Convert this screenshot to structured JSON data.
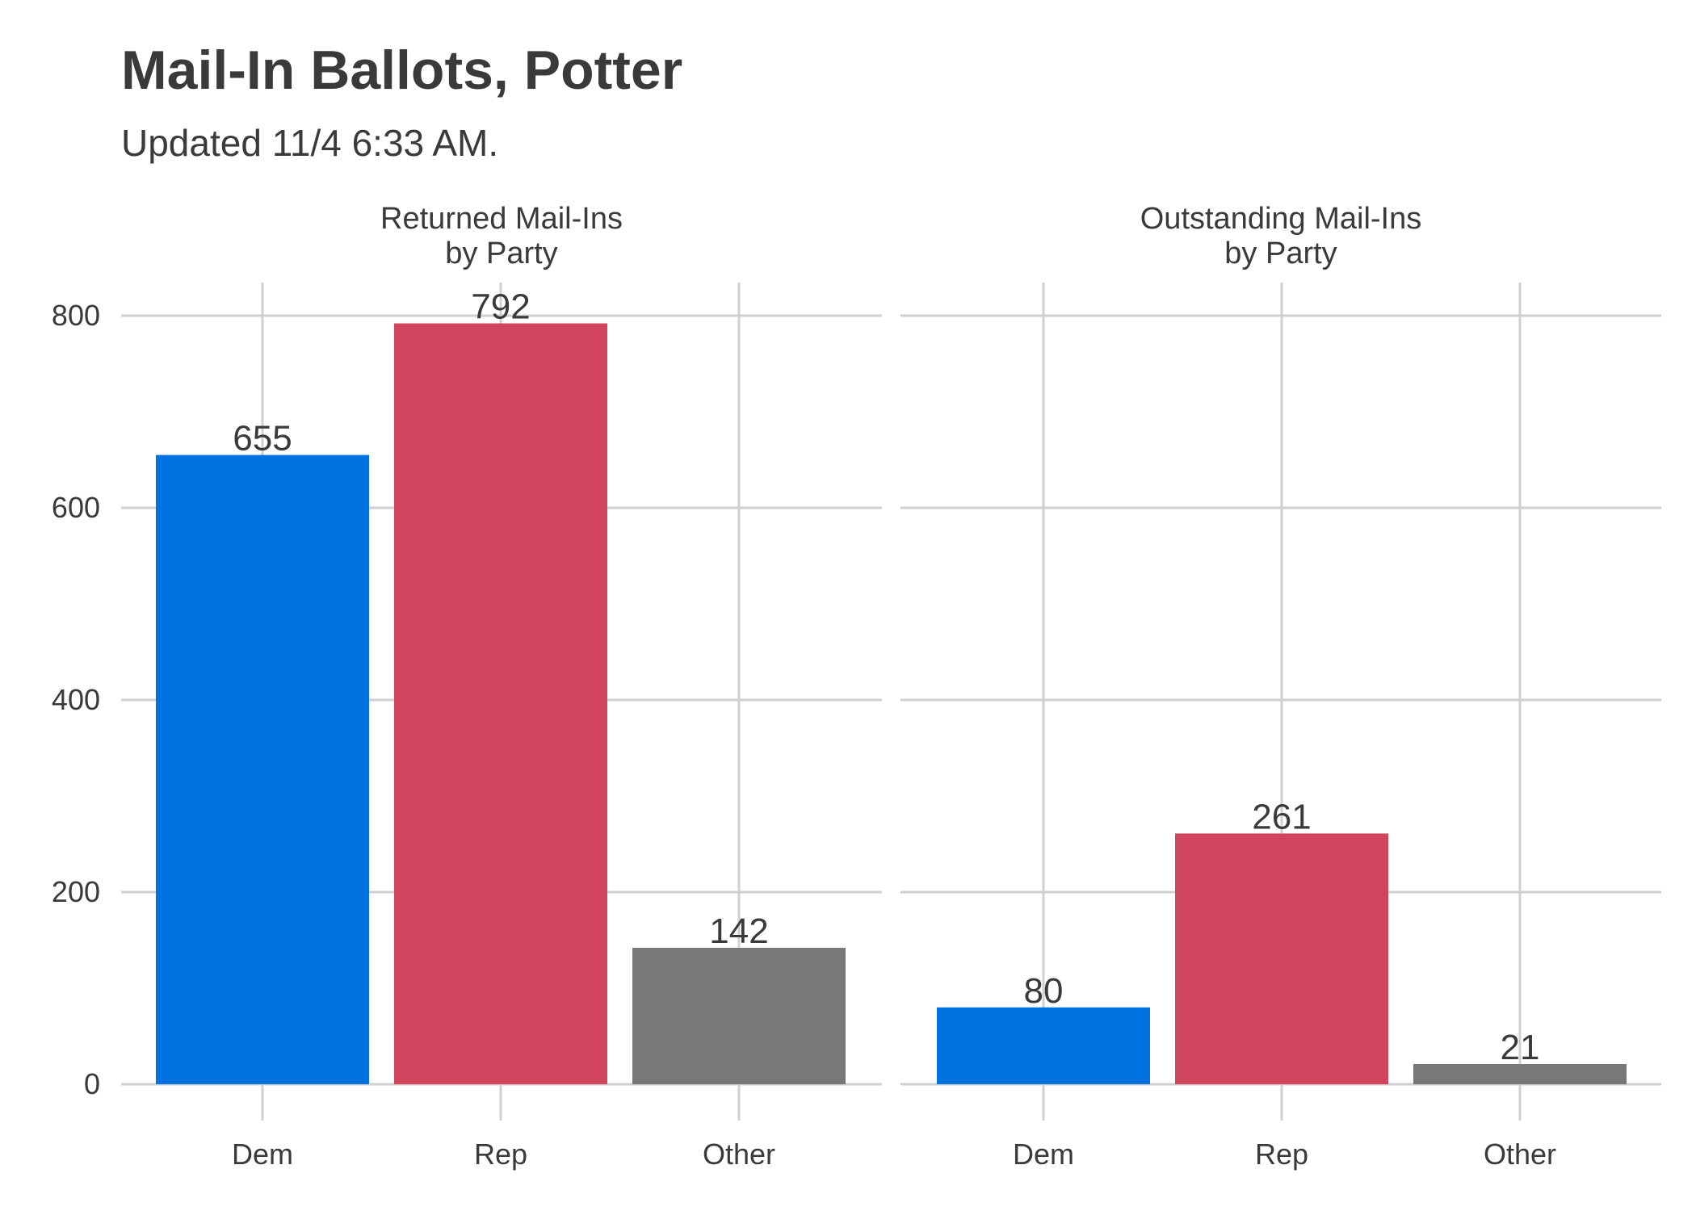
{
  "title": "Mail-In Ballots, Potter",
  "subtitle": "Updated 11/4 6:33 AM.",
  "colors": {
    "Dem": "#0073e0",
    "Rep": "#d1445e",
    "Other": "#787878",
    "grid": "#d0d0d0",
    "text": "#3a3a3a"
  },
  "chart_data": {
    "type": "bar",
    "facets": [
      {
        "title": [
          "Returned Mail-Ins",
          "by Party"
        ],
        "categories": [
          "Dem",
          "Rep",
          "Other"
        ],
        "values": [
          655,
          792,
          142
        ]
      },
      {
        "title": [
          "Outstanding Mail-Ins",
          "by Party"
        ],
        "categories": [
          "Dem",
          "Rep",
          "Other"
        ],
        "values": [
          80,
          261,
          21
        ]
      }
    ],
    "yticks": [
      0,
      200,
      400,
      600,
      800
    ],
    "ylim": [
      0,
      840
    ],
    "grid": true,
    "legend": "none"
  }
}
